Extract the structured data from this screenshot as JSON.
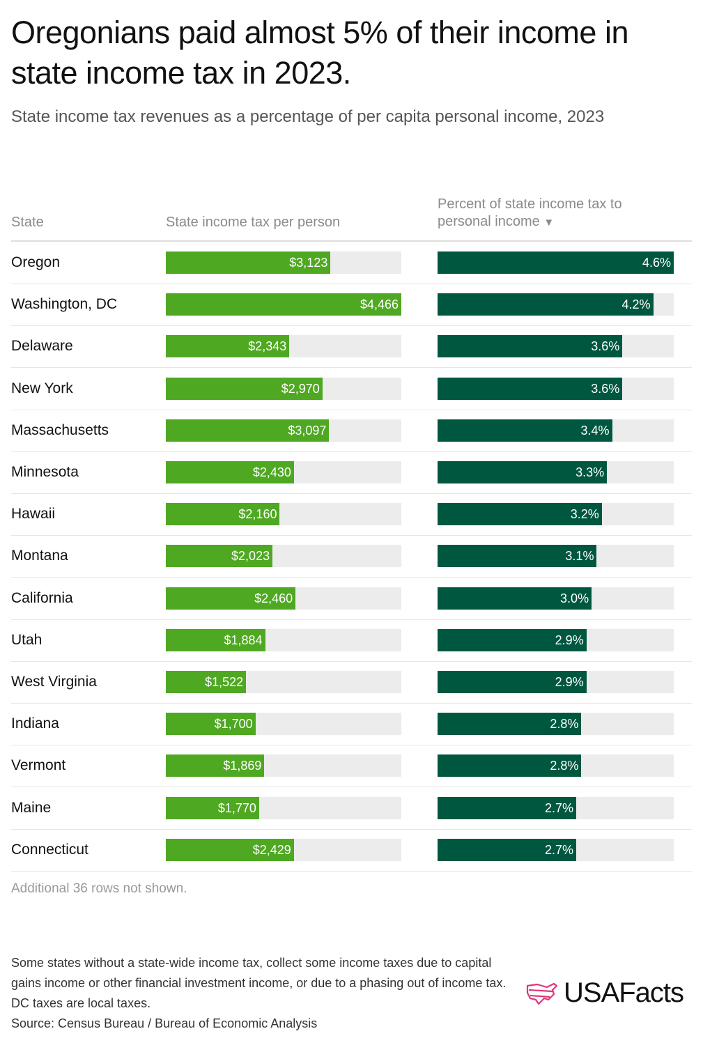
{
  "title": "Oregonians paid almost 5% of their income in state income tax in 2023.",
  "subtitle": "State income tax revenues as a percentage of per capita personal income, 2023",
  "headers": {
    "state": "State",
    "tax": "State income tax per person",
    "pct": "Percent of state income tax to personal income",
    "sort_icon": "▼"
  },
  "colors": {
    "tax": "#4fa822",
    "pct": "#00573f",
    "track": "#ececec"
  },
  "chart_data": {
    "type": "table",
    "columns": [
      "State",
      "State income tax per person",
      "Percent of state income tax to personal income"
    ],
    "tax_max": 4466,
    "pct_max": 4.6,
    "rows": [
      {
        "state": "Oregon",
        "tax": 3123,
        "tax_label": "$3,123",
        "pct": 4.6,
        "pct_label": "4.6%"
      },
      {
        "state": "Washington, DC",
        "tax": 4466,
        "tax_label": "$4,466",
        "pct": 4.2,
        "pct_label": "4.2%"
      },
      {
        "state": "Delaware",
        "tax": 2343,
        "tax_label": "$2,343",
        "pct": 3.6,
        "pct_label": "3.6%"
      },
      {
        "state": "New York",
        "tax": 2970,
        "tax_label": "$2,970",
        "pct": 3.6,
        "pct_label": "3.6%"
      },
      {
        "state": "Massachusetts",
        "tax": 3097,
        "tax_label": "$3,097",
        "pct": 3.4,
        "pct_label": "3.4%"
      },
      {
        "state": "Minnesota",
        "tax": 2430,
        "tax_label": "$2,430",
        "pct": 3.3,
        "pct_label": "3.3%"
      },
      {
        "state": "Hawaii",
        "tax": 2160,
        "tax_label": "$2,160",
        "pct": 3.2,
        "pct_label": "3.2%"
      },
      {
        "state": "Montana",
        "tax": 2023,
        "tax_label": "$2,023",
        "pct": 3.1,
        "pct_label": "3.1%"
      },
      {
        "state": "California",
        "tax": 2460,
        "tax_label": "$2,460",
        "pct": 3.0,
        "pct_label": "3.0%"
      },
      {
        "state": "Utah",
        "tax": 1884,
        "tax_label": "$1,884",
        "pct": 2.9,
        "pct_label": "2.9%"
      },
      {
        "state": "West Virginia",
        "tax": 1522,
        "tax_label": "$1,522",
        "pct": 2.9,
        "pct_label": "2.9%"
      },
      {
        "state": "Indiana",
        "tax": 1700,
        "tax_label": "$1,700",
        "pct": 2.8,
        "pct_label": "2.8%"
      },
      {
        "state": "Vermont",
        "tax": 1869,
        "tax_label": "$1,869",
        "pct": 2.8,
        "pct_label": "2.8%"
      },
      {
        "state": "Maine",
        "tax": 1770,
        "tax_label": "$1,770",
        "pct": 2.7,
        "pct_label": "2.7%"
      },
      {
        "state": "Connecticut",
        "tax": 2429,
        "tax_label": "$2,429",
        "pct": 2.7,
        "pct_label": "2.7%"
      }
    ]
  },
  "note": "Additional 36 rows not shown.",
  "footnote": "Some states without a state-wide income tax, collect some income taxes due to capital gains income or other financial investment income, or due to a phasing out of income tax. DC taxes are local taxes.",
  "source": "Source: Census Bureau / Bureau of Economic Analysis",
  "logo": "USAFacts"
}
